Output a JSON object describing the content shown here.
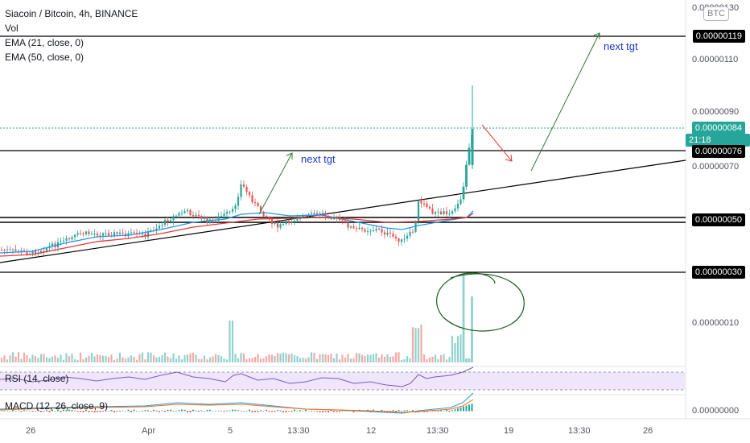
{
  "header": {
    "symbol_line": "Siacoin / Bitcoin, 4h, BINANCE",
    "vol": "Vol",
    "ema1": "EMA (21, close, 0)",
    "ema2": "EMA (50, close, 0)",
    "currency_badge": "BTC"
  },
  "annotations": {
    "next_tgt_1": "next tgt",
    "next_tgt_2": "next tgt"
  },
  "indicators": {
    "rsi": "RSI (14, close)",
    "macd": "MACD (12, 26, close, 9)"
  },
  "price_axis": {
    "ticks": [
      "0.00000130",
      "0.00000110",
      "0.00000090",
      "0.00000070",
      "0.00000010",
      "0.00000000"
    ],
    "labels": {
      "l119": "0.00000119",
      "last": "0.00000084",
      "last_time": "21:18",
      "l76": "0.00000076",
      "l50": "0.00000050",
      "l30": "0.00000030"
    }
  },
  "time_axis": [
    "26",
    "Apr",
    "5",
    "13:30",
    "12",
    "13:30",
    "19",
    "13:30",
    "26"
  ]
}
